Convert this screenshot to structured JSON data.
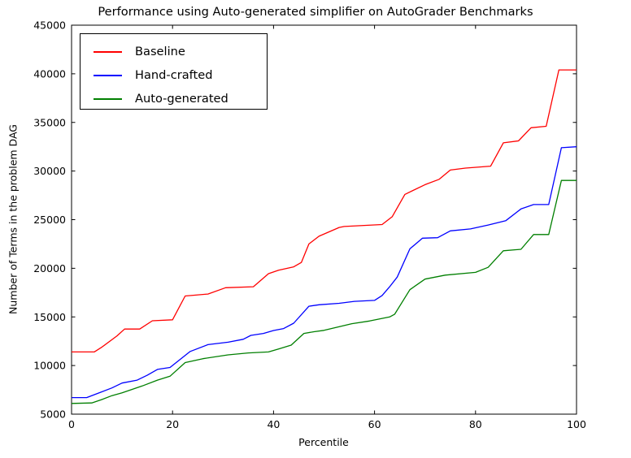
{
  "chart_data": {
    "type": "line",
    "title": "Performance using Auto-generated simplifier on AutoGrader Benchmarks",
    "xlabel": "Percentile",
    "ylabel": "Number of Terms in the problem DAG",
    "xlim": [
      0,
      100
    ],
    "ylim": [
      5000,
      45000
    ],
    "xticks": [
      0,
      20,
      40,
      60,
      80,
      100
    ],
    "yticks": [
      5000,
      10000,
      15000,
      20000,
      25000,
      30000,
      35000,
      40000,
      45000
    ],
    "grid": false,
    "legend_position": "upper-left",
    "series": [
      {
        "name": "Baseline",
        "color": "#ff0000",
        "points": [
          [
            0,
            11400
          ],
          [
            4.5,
            11400
          ],
          [
            6,
            11900
          ],
          [
            9,
            13050
          ],
          [
            10.5,
            13750
          ],
          [
            13.5,
            13750
          ],
          [
            16,
            14600
          ],
          [
            20,
            14700
          ],
          [
            22.5,
            17150
          ],
          [
            27,
            17350
          ],
          [
            30.5,
            18000
          ],
          [
            36,
            18100
          ],
          [
            39,
            19450
          ],
          [
            41,
            19800
          ],
          [
            44,
            20150
          ],
          [
            45.5,
            20600
          ],
          [
            47,
            22500
          ],
          [
            49,
            23300
          ],
          [
            53,
            24200
          ],
          [
            54,
            24300
          ],
          [
            61.5,
            24500
          ],
          [
            63.5,
            25300
          ],
          [
            66,
            27600
          ],
          [
            70,
            28600
          ],
          [
            72.8,
            29150
          ],
          [
            75,
            30100
          ],
          [
            78,
            30300
          ],
          [
            83,
            30500
          ],
          [
            85.5,
            32900
          ],
          [
            88.5,
            33100
          ],
          [
            91,
            34450
          ],
          [
            94,
            34600
          ],
          [
            96.5,
            40400
          ],
          [
            100,
            40400
          ]
        ]
      },
      {
        "name": "Hand-crafted",
        "color": "#0000ff",
        "points": [
          [
            0,
            6700
          ],
          [
            3,
            6700
          ],
          [
            5,
            7100
          ],
          [
            8,
            7700
          ],
          [
            10,
            8200
          ],
          [
            13,
            8500
          ],
          [
            15,
            9000
          ],
          [
            17,
            9600
          ],
          [
            19.5,
            9800
          ],
          [
            23.5,
            11450
          ],
          [
            27,
            12150
          ],
          [
            31,
            12400
          ],
          [
            34,
            12700
          ],
          [
            35.5,
            13100
          ],
          [
            38,
            13300
          ],
          [
            40,
            13600
          ],
          [
            42,
            13800
          ],
          [
            44,
            14350
          ],
          [
            47,
            16100
          ],
          [
            49,
            16250
          ],
          [
            53,
            16400
          ],
          [
            56,
            16600
          ],
          [
            60,
            16700
          ],
          [
            61.5,
            17200
          ],
          [
            63,
            18100
          ],
          [
            64.5,
            19100
          ],
          [
            67,
            22000
          ],
          [
            69.5,
            23100
          ],
          [
            72.5,
            23150
          ],
          [
            75,
            23850
          ],
          [
            79,
            24050
          ],
          [
            82.5,
            24450
          ],
          [
            86,
            24900
          ],
          [
            89,
            26100
          ],
          [
            91.5,
            26550
          ],
          [
            94.5,
            26550
          ],
          [
            97,
            32400
          ],
          [
            100,
            32500
          ]
        ]
      },
      {
        "name": "Auto-generated",
        "color": "#007f00",
        "points": [
          [
            0,
            6100
          ],
          [
            4,
            6150
          ],
          [
            6,
            6500
          ],
          [
            8,
            6900
          ],
          [
            10,
            7200
          ],
          [
            14,
            7900
          ],
          [
            17,
            8500
          ],
          [
            19.5,
            8900
          ],
          [
            22.5,
            10300
          ],
          [
            26,
            10700
          ],
          [
            31,
            11100
          ],
          [
            35,
            11300
          ],
          [
            39,
            11400
          ],
          [
            41,
            11700
          ],
          [
            43.5,
            12100
          ],
          [
            46,
            13300
          ],
          [
            48,
            13480
          ],
          [
            50,
            13620
          ],
          [
            55.5,
            14300
          ],
          [
            59,
            14580
          ],
          [
            63,
            15000
          ],
          [
            64,
            15280
          ],
          [
            67,
            17800
          ],
          [
            70,
            18890
          ],
          [
            74,
            19300
          ],
          [
            80,
            19580
          ],
          [
            82.5,
            20100
          ],
          [
            85.5,
            21800
          ],
          [
            89,
            21950
          ],
          [
            91.5,
            23470
          ],
          [
            94.5,
            23470
          ],
          [
            97,
            29030
          ],
          [
            100,
            29030
          ]
        ]
      }
    ]
  }
}
